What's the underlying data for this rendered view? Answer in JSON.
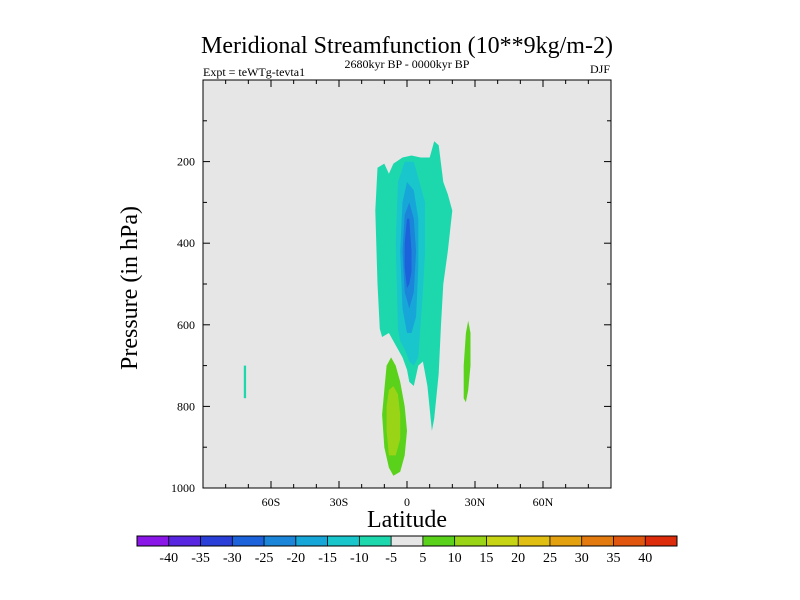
{
  "chart_data": {
    "type": "contour",
    "title": "Meridional Streamfunction (10**9kg/m-2)",
    "subtitle_left": "Expt = teWTg-tevta1",
    "subtitle_center": "2680kyr BP - 0000kyr BP",
    "subtitle_right": "DJF",
    "xlabel": "Latitude",
    "ylabel": "Pressure (in hPa)",
    "xlim": [
      -90,
      90
    ],
    "ylim": [
      1000,
      0
    ],
    "x_ticks": [
      {
        "value": -60,
        "label": "60S"
      },
      {
        "value": -30,
        "label": "30S"
      },
      {
        "value": 0,
        "label": "0"
      },
      {
        "value": 30,
        "label": "30N"
      },
      {
        "value": 60,
        "label": "60N"
      }
    ],
    "y_ticks": [
      {
        "value": 200,
        "label": "200"
      },
      {
        "value": 400,
        "label": "400"
      },
      {
        "value": 600,
        "label": "600"
      },
      {
        "value": 800,
        "label": "800"
      },
      {
        "value": 1000,
        "label": "1000"
      }
    ],
    "background_color": "#e6e6e6",
    "colorbar": {
      "labels": [
        "-40",
        "-35",
        "-30",
        "-25",
        "-20",
        "-15",
        "-10",
        "-5",
        "5",
        "10",
        "15",
        "20",
        "25",
        "30",
        "35",
        "40"
      ],
      "colors": [
        "#8b16e8",
        "#5826e0",
        "#2a3fd8",
        "#1c62da",
        "#1b86d9",
        "#17a6d8",
        "#19c6cc",
        "#1ed8ad",
        "#e6e6e6",
        "#5ad21b",
        "#9ad416",
        "#c6d414",
        "#e0bf12",
        "#e3a00f",
        "#e27a0f",
        "#e0560e",
        "#dc2c0b"
      ]
    },
    "regions": [
      {
        "name": "negative-cell-minus-5",
        "level": -5,
        "color": "#1ed8ad",
        "points": [
          [
            -12,
            610
          ],
          [
            -13,
            500
          ],
          [
            -14,
            320
          ],
          [
            -13,
            215
          ],
          [
            -10,
            205
          ],
          [
            -8,
            230
          ],
          [
            -6,
            205
          ],
          [
            -2,
            190
          ],
          [
            2,
            185
          ],
          [
            6,
            190
          ],
          [
            10,
            190
          ],
          [
            12,
            150
          ],
          [
            14,
            160
          ],
          [
            16,
            250
          ],
          [
            18,
            280
          ],
          [
            20,
            320
          ],
          [
            18,
            420
          ],
          [
            16,
            500
          ],
          [
            15,
            600
          ],
          [
            14,
            720
          ],
          [
            12,
            830
          ],
          [
            11,
            860
          ],
          [
            9,
            750
          ],
          [
            7,
            690
          ],
          [
            5,
            700
          ],
          [
            3,
            750
          ],
          [
            1,
            740
          ],
          [
            0,
            710
          ],
          [
            -2,
            680
          ],
          [
            -5,
            650
          ],
          [
            -8,
            620
          ],
          [
            -11,
            630
          ]
        ]
      },
      {
        "name": "negative-cell-minus-10",
        "level": -10,
        "color": "#19c6cc",
        "points": [
          [
            -4,
            610
          ],
          [
            -5,
            400
          ],
          [
            -4,
            250
          ],
          [
            -1,
            200
          ],
          [
            3,
            200
          ],
          [
            6,
            260
          ],
          [
            8,
            300
          ],
          [
            8,
            420
          ],
          [
            7,
            520
          ],
          [
            6,
            600
          ],
          [
            5,
            680
          ],
          [
            3,
            700
          ],
          [
            1,
            690
          ],
          [
            -1,
            660
          ],
          [
            -3,
            640
          ]
        ]
      },
      {
        "name": "negative-cell-minus-15",
        "level": -15,
        "color": "#17a6d8",
        "points": [
          [
            -2,
            560
          ],
          [
            -3,
            420
          ],
          [
            -2,
            300
          ],
          [
            0,
            250
          ],
          [
            3,
            270
          ],
          [
            5,
            340
          ],
          [
            5,
            460
          ],
          [
            4,
            580
          ],
          [
            2,
            620
          ],
          [
            0,
            620
          ]
        ]
      },
      {
        "name": "negative-cell-minus-20",
        "level": -20,
        "color": "#1b86d9",
        "points": [
          [
            -1,
            520
          ],
          [
            -2,
            420
          ],
          [
            -1,
            330
          ],
          [
            1,
            300
          ],
          [
            3,
            340
          ],
          [
            4,
            420
          ],
          [
            3,
            520
          ],
          [
            1,
            560
          ]
        ]
      },
      {
        "name": "negative-cell-minus-25",
        "level": -25,
        "color": "#1c62da",
        "points": [
          [
            -1,
            460
          ],
          [
            -1,
            400
          ],
          [
            0,
            340
          ],
          [
            1,
            340
          ],
          [
            2,
            420
          ],
          [
            2,
            470
          ],
          [
            1,
            500
          ],
          [
            0,
            510
          ]
        ]
      },
      {
        "name": "positive-cell-plus-5",
        "level": 5,
        "color": "#5ad21b",
        "points": [
          [
            -10,
            760
          ],
          [
            -9,
            700
          ],
          [
            -7,
            680
          ],
          [
            -5,
            700
          ],
          [
            -3,
            740
          ],
          [
            -1,
            800
          ],
          [
            0,
            860
          ],
          [
            -1,
            920
          ],
          [
            -3,
            960
          ],
          [
            -6,
            970
          ],
          [
            -8,
            950
          ],
          [
            -10,
            900
          ],
          [
            -11,
            820
          ]
        ]
      },
      {
        "name": "positive-cell-plus-10",
        "level": 10,
        "color": "#9ad416",
        "points": [
          [
            -9,
            800
          ],
          [
            -8,
            760
          ],
          [
            -6,
            750
          ],
          [
            -4,
            770
          ],
          [
            -3,
            820
          ],
          [
            -3,
            880
          ],
          [
            -5,
            920
          ],
          [
            -8,
            920
          ],
          [
            -9,
            860
          ]
        ]
      },
      {
        "name": "positive-patch-30N",
        "level": 5,
        "color": "#5ad21b",
        "points": [
          [
            25,
            700
          ],
          [
            26,
            620
          ],
          [
            27,
            590
          ],
          [
            28,
            620
          ],
          [
            28,
            700
          ],
          [
            27,
            760
          ],
          [
            26,
            790
          ],
          [
            25,
            780
          ]
        ]
      },
      {
        "name": "negative-patch-60S",
        "level": -5,
        "color": "#1ed8ad",
        "points": [
          [
            -72,
            700
          ],
          [
            -71,
            700
          ],
          [
            -71,
            780
          ],
          [
            -72,
            780
          ]
        ]
      }
    ]
  }
}
